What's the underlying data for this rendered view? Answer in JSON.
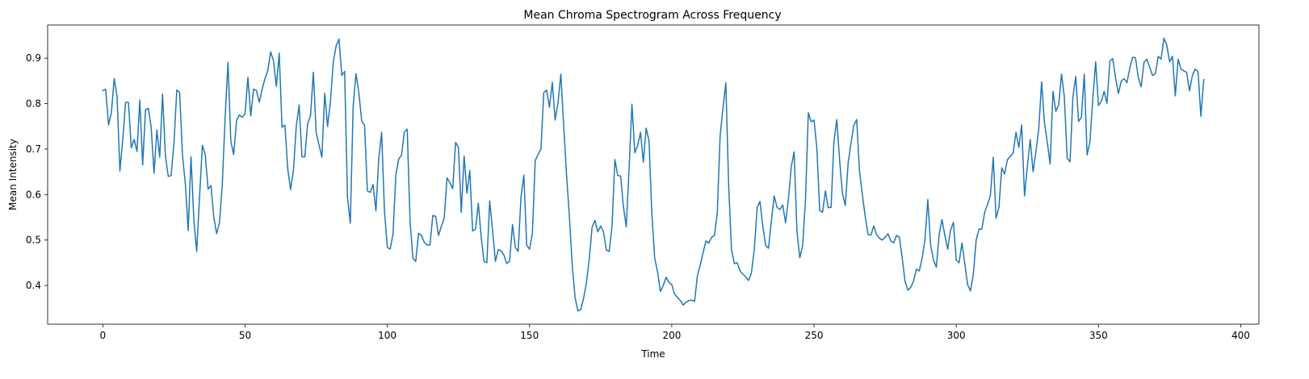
{
  "chart_data": {
    "type": "line",
    "title": "Mean Chroma Spectrogram Across Frequency",
    "xlabel": "Time",
    "ylabel": "Mean Intensity",
    "xlim": [
      -19.4,
      406.4
    ],
    "ylim": [
      0.315,
      0.973
    ],
    "xticks": [
      0,
      50,
      100,
      150,
      200,
      250,
      300,
      350,
      400
    ],
    "yticks": [
      0.4,
      0.5,
      0.6,
      0.7,
      0.8,
      0.9
    ],
    "ytick_labels": [
      "0.4",
      "0.5",
      "0.6",
      "0.7",
      "0.8",
      "0.9"
    ],
    "grid": false,
    "series": [
      {
        "color": "#1f77b4",
        "x_start": 0,
        "x_step": 1,
        "values": [
          0.829,
          0.832,
          0.753,
          0.78,
          0.855,
          0.816,
          0.652,
          0.72,
          0.803,
          0.803,
          0.703,
          0.721,
          0.695,
          0.808,
          0.665,
          0.786,
          0.79,
          0.748,
          0.647,
          0.742,
          0.682,
          0.821,
          0.685,
          0.64,
          0.642,
          0.713,
          0.83,
          0.825,
          0.686,
          0.625,
          0.521,
          0.683,
          0.544,
          0.475,
          0.595,
          0.708,
          0.688,
          0.612,
          0.62,
          0.551,
          0.514,
          0.538,
          0.623,
          0.771,
          0.891,
          0.717,
          0.688,
          0.762,
          0.775,
          0.77,
          0.778,
          0.858,
          0.773,
          0.832,
          0.829,
          0.803,
          0.832,
          0.855,
          0.873,
          0.914,
          0.894,
          0.838,
          0.911,
          0.748,
          0.753,
          0.657,
          0.611,
          0.653,
          0.75,
          0.797,
          0.683,
          0.683,
          0.756,
          0.773,
          0.869,
          0.736,
          0.709,
          0.682,
          0.823,
          0.75,
          0.804,
          0.891,
          0.927,
          0.942,
          0.862,
          0.871,
          0.594,
          0.537,
          0.795,
          0.866,
          0.824,
          0.762,
          0.752,
          0.608,
          0.605,
          0.622,
          0.564,
          0.679,
          0.737,
          0.564,
          0.484,
          0.48,
          0.513,
          0.643,
          0.678,
          0.687,
          0.738,
          0.744,
          0.541,
          0.46,
          0.453,
          0.515,
          0.51,
          0.495,
          0.489,
          0.489,
          0.554,
          0.552,
          0.51,
          0.53,
          0.548,
          0.637,
          0.626,
          0.613,
          0.715,
          0.704,
          0.561,
          0.685,
          0.603,
          0.653,
          0.52,
          0.524,
          0.581,
          0.506,
          0.453,
          0.45,
          0.586,
          0.522,
          0.453,
          0.479,
          0.476,
          0.467,
          0.448,
          0.454,
          0.534,
          0.484,
          0.475,
          0.595,
          0.643,
          0.488,
          0.48,
          0.515,
          0.675,
          0.688,
          0.7,
          0.824,
          0.83,
          0.792,
          0.847,
          0.764,
          0.802,
          0.865,
          0.751,
          0.644,
          0.552,
          0.445,
          0.374,
          0.344,
          0.347,
          0.372,
          0.406,
          0.459,
          0.529,
          0.543,
          0.518,
          0.531,
          0.518,
          0.478,
          0.475,
          0.53,
          0.677,
          0.642,
          0.641,
          0.574,
          0.529,
          0.658,
          0.799,
          0.692,
          0.708,
          0.737,
          0.671,
          0.746,
          0.718,
          0.557,
          0.46,
          0.43,
          0.387,
          0.4,
          0.418,
          0.407,
          0.402,
          0.381,
          0.374,
          0.367,
          0.357,
          0.363,
          0.367,
          0.368,
          0.365,
          0.421,
          0.445,
          0.472,
          0.498,
          0.493,
          0.506,
          0.51,
          0.56,
          0.73,
          0.79,
          0.846,
          0.619,
          0.479,
          0.448,
          0.45,
          0.432,
          0.425,
          0.419,
          0.411,
          0.428,
          0.479,
          0.571,
          0.585,
          0.53,
          0.488,
          0.482,
          0.542,
          0.597,
          0.572,
          0.567,
          0.577,
          0.538,
          0.59,
          0.661,
          0.694,
          0.52,
          0.461,
          0.488,
          0.588,
          0.78,
          0.76,
          0.764,
          0.702,
          0.565,
          0.561,
          0.608,
          0.571,
          0.572,
          0.717,
          0.765,
          0.676,
          0.602,
          0.576,
          0.67,
          0.713,
          0.753,
          0.765,
          0.651,
          0.599,
          0.552,
          0.512,
          0.511,
          0.531,
          0.512,
          0.504,
          0.5,
          0.506,
          0.514,
          0.498,
          0.494,
          0.51,
          0.506,
          0.461,
          0.409,
          0.39,
          0.396,
          0.41,
          0.436,
          0.432,
          0.46,
          0.501,
          0.589,
          0.488,
          0.456,
          0.44,
          0.513,
          0.545,
          0.51,
          0.48,
          0.522,
          0.539,
          0.456,
          0.45,
          0.494,
          0.448,
          0.402,
          0.388,
          0.425,
          0.5,
          0.524,
          0.524,
          0.561,
          0.578,
          0.598,
          0.682,
          0.548,
          0.572,
          0.659,
          0.645,
          0.677,
          0.684,
          0.691,
          0.737,
          0.704,
          0.753,
          0.597,
          0.662,
          0.721,
          0.65,
          0.694,
          0.744,
          0.848,
          0.759,
          0.715,
          0.667,
          0.827,
          0.783,
          0.797,
          0.865,
          0.814,
          0.68,
          0.672,
          0.814,
          0.86,
          0.761,
          0.77,
          0.865,
          0.687,
          0.716,
          0.811,
          0.892,
          0.796,
          0.805,
          0.827,
          0.801,
          0.894,
          0.899,
          0.857,
          0.822,
          0.85,
          0.855,
          0.846,
          0.878,
          0.902,
          0.901,
          0.857,
          0.837,
          0.891,
          0.898,
          0.88,
          0.862,
          0.866,
          0.904,
          0.898,
          0.944,
          0.929,
          0.892,
          0.904,
          0.817,
          0.898,
          0.876,
          0.872,
          0.869,
          0.828,
          0.862,
          0.876,
          0.87,
          0.772,
          0.853
        ]
      }
    ]
  }
}
